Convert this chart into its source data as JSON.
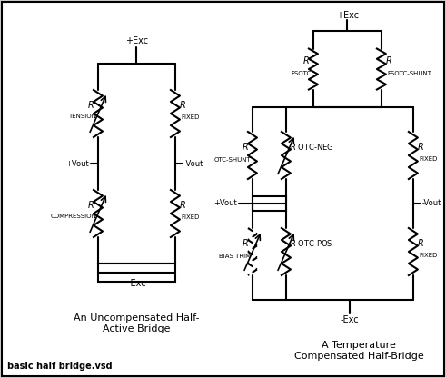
{
  "bg_color": "#d8d8d8",
  "fg_color": "#000000",
  "border_color": "#000000",
  "title1": "An Uncompensated Half-\nActive Bridge",
  "title2": "A Temperature\nCompensated Half-Bridge",
  "footer": "basic half bridge.vsd",
  "fig_bg": "#d0d0d0",
  "panel_bg": "#ffffff"
}
